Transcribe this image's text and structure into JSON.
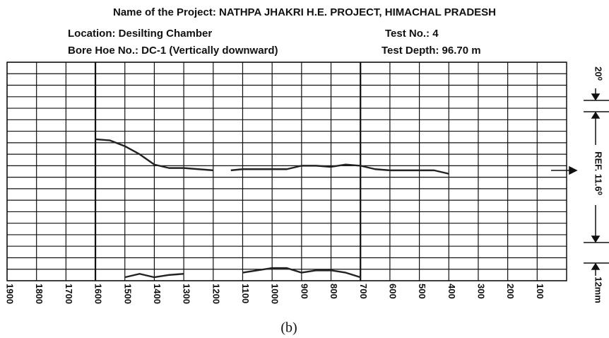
{
  "chart_data": {
    "type": "line",
    "title": "Name of the Project: NATHPA JHAKRI H.E. PROJECT, HIMACHAL PRADESH",
    "location": "Location: Desilting Chamber",
    "test_no": "Test No.:  4",
    "bore_hole": "Bore Hoe No.: DC-1 (Vertically downward)",
    "test_depth": "Test Depth: 96.70 m",
    "top_annotation": "20⁰",
    "ref_annotation": "REF. 11.6⁰",
    "bottom_annotation": "12mm",
    "caption": "(b)",
    "xlim": [
      1900,
      0
    ],
    "xticks": [
      1900,
      1800,
      1700,
      1600,
      1500,
      1400,
      1300,
      1200,
      1100,
      1000,
      900,
      800,
      700,
      600,
      500,
      400,
      300,
      200,
      100
    ],
    "major_x": [
      1600,
      700
    ],
    "ylim": [
      0,
      19
    ],
    "yticks": [
      0,
      1,
      2,
      3,
      4,
      5,
      6,
      7,
      8,
      9,
      10,
      11,
      12,
      13,
      14,
      15,
      16,
      17,
      18,
      19
    ],
    "grid": true,
    "series": [
      {
        "color": "#222222",
        "x": [
          1600,
          1550,
          1500,
          1450,
          1400,
          1350,
          1300,
          1250,
          1200,
          1150,
          1140,
          1100,
          1000,
          950,
          900,
          850,
          800,
          750,
          700,
          650,
          600,
          500,
          450,
          400
        ],
        "values": [
          12.3,
          12.2,
          11.7,
          11.0,
          10.1,
          9.8,
          9.8,
          9.7,
          9.6,
          null,
          9.6,
          9.7,
          9.7,
          9.7,
          10.0,
          10.0,
          9.9,
          10.1,
          10.0,
          9.7,
          9.6,
          9.6,
          9.6,
          9.3
        ]
      },
      {
        "color": "#222222",
        "x": [
          1500,
          1450,
          1400,
          1350,
          1300
        ],
        "values": [
          0.3,
          0.6,
          0.3,
          0.5,
          0.6
        ]
      },
      {
        "color": "#222222",
        "x": [
          1100,
          1050,
          1000,
          950,
          900,
          850,
          800,
          750,
          700
        ],
        "values": [
          0.7,
          0.9,
          1.1,
          1.1,
          0.7,
          0.9,
          0.9,
          0.7,
          0.3
        ]
      }
    ]
  }
}
